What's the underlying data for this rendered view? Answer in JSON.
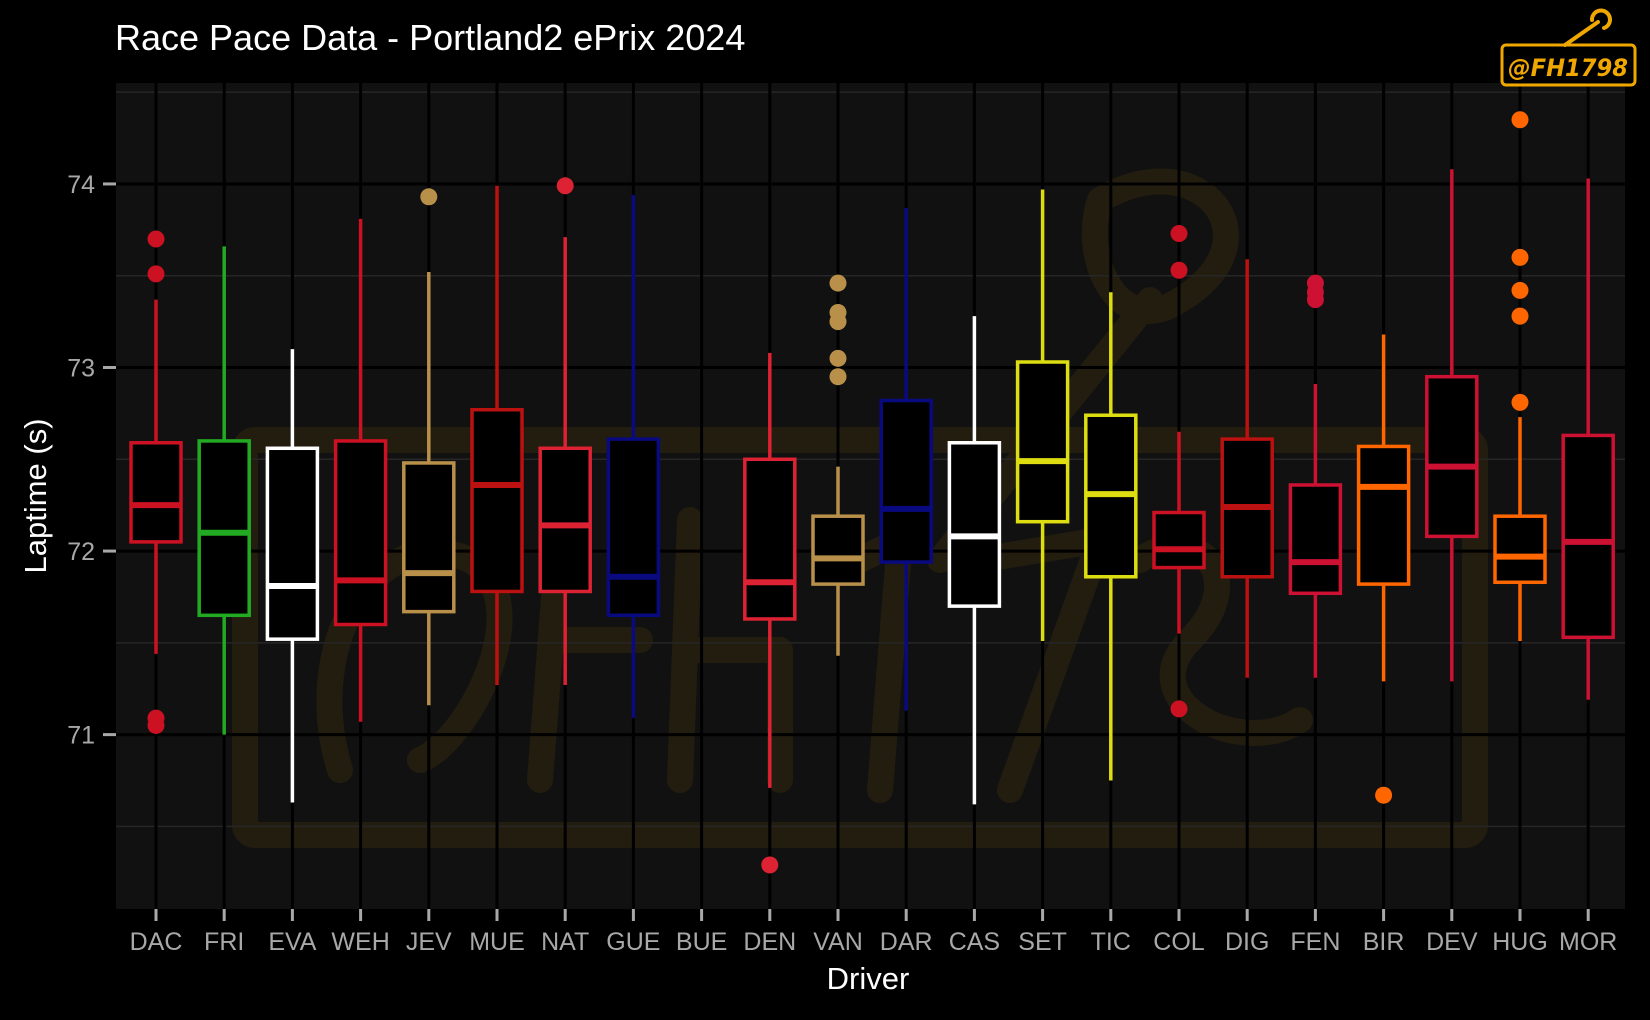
{
  "chart_data": {
    "type": "box",
    "title": "Race Pace Data - Portland2 ePrix 2024",
    "xlabel": "Driver",
    "ylabel": "Laptime (s)",
    "ylim": [
      70.05,
      74.55
    ],
    "yticks": [
      71,
      72,
      73,
      74
    ],
    "grid": true,
    "legend": "none",
    "logo_text": "@FH1798",
    "categories": [
      "DAC",
      "FRI",
      "EVA",
      "WEH",
      "JEV",
      "MUE",
      "NAT",
      "GUE",
      "BUE",
      "DEN",
      "VAN",
      "DAR",
      "CAS",
      "SET",
      "TIC",
      "COL",
      "DIG",
      "FEN",
      "BIR",
      "DEV",
      "HUG",
      "MOR"
    ],
    "series": [
      {
        "driver": "DAC",
        "color": "#cc1122",
        "q1": 72.05,
        "median": 72.25,
        "q3": 72.59,
        "lower": 71.44,
        "upper": 73.37,
        "outliers": [
          73.7,
          73.51,
          71.09,
          71.05
        ]
      },
      {
        "driver": "FRI",
        "color": "#22aa22",
        "q1": 71.65,
        "median": 72.1,
        "q3": 72.6,
        "lower": 71.0,
        "upper": 73.66,
        "outliers": []
      },
      {
        "driver": "EVA",
        "color": "#ffffff",
        "q1": 71.52,
        "median": 71.81,
        "q3": 72.56,
        "lower": 70.63,
        "upper": 73.1,
        "outliers": []
      },
      {
        "driver": "WEH",
        "color": "#cc1122",
        "q1": 71.6,
        "median": 71.84,
        "q3": 72.6,
        "lower": 71.07,
        "upper": 73.81,
        "outliers": []
      },
      {
        "driver": "JEV",
        "color": "#b8904a",
        "q1": 71.67,
        "median": 71.88,
        "q3": 72.48,
        "lower": 71.16,
        "upper": 73.52,
        "outliers": [
          73.93
        ]
      },
      {
        "driver": "MUE",
        "color": "#bb1111",
        "q1": 71.78,
        "median": 72.36,
        "q3": 72.77,
        "lower": 71.27,
        "upper": 73.99,
        "outliers": []
      },
      {
        "driver": "NAT",
        "color": "#dd2233",
        "q1": 71.78,
        "median": 72.14,
        "q3": 72.56,
        "lower": 71.27,
        "upper": 73.71,
        "outliers": [
          73.99
        ]
      },
      {
        "driver": "GUE",
        "color": "#0a0a80",
        "q1": 71.65,
        "median": 71.86,
        "q3": 72.61,
        "lower": 71.09,
        "upper": 73.94,
        "outliers": []
      },
      {
        "driver": "BUE",
        "color": "#111111",
        "q1": null,
        "median": null,
        "q3": null,
        "lower": null,
        "upper": null,
        "outliers": []
      },
      {
        "driver": "DEN",
        "color": "#dd2233",
        "q1": 71.63,
        "median": 71.83,
        "q3": 72.5,
        "lower": 70.71,
        "upper": 73.08,
        "outliers": [
          70.29
        ]
      },
      {
        "driver": "VAN",
        "color": "#b8904a",
        "q1": 71.82,
        "median": 71.96,
        "q3": 72.19,
        "lower": 71.43,
        "upper": 72.46,
        "outliers": [
          73.46,
          73.3,
          73.25,
          73.05,
          72.95
        ]
      },
      {
        "driver": "DAR",
        "color": "#0a0a80",
        "q1": 71.94,
        "median": 72.23,
        "q3": 72.82,
        "lower": 71.13,
        "upper": 73.87,
        "outliers": []
      },
      {
        "driver": "CAS",
        "color": "#ffffff",
        "q1": 71.7,
        "median": 72.08,
        "q3": 72.59,
        "lower": 70.62,
        "upper": 73.28,
        "outliers": []
      },
      {
        "driver": "SET",
        "color": "#dddd11",
        "q1": 72.16,
        "median": 72.49,
        "q3": 73.03,
        "lower": 71.51,
        "upper": 73.97,
        "outliers": []
      },
      {
        "driver": "TIC",
        "color": "#dddd11",
        "q1": 71.86,
        "median": 72.31,
        "q3": 72.74,
        "lower": 70.75,
        "upper": 73.41,
        "outliers": []
      },
      {
        "driver": "COL",
        "color": "#cc1122",
        "q1": 71.91,
        "median": 72.01,
        "q3": 72.21,
        "lower": 71.55,
        "upper": 72.65,
        "outliers": [
          73.73,
          73.53,
          71.14
        ]
      },
      {
        "driver": "DIG",
        "color": "#bb1111",
        "q1": 71.86,
        "median": 72.24,
        "q3": 72.61,
        "lower": 71.31,
        "upper": 73.59,
        "outliers": []
      },
      {
        "driver": "FEN",
        "color": "#cc1133",
        "q1": 71.77,
        "median": 71.94,
        "q3": 72.36,
        "lower": 71.31,
        "upper": 72.91,
        "outliers": [
          73.46,
          73.41,
          73.37
        ]
      },
      {
        "driver": "BIR",
        "color": "#ff6600",
        "q1": 71.82,
        "median": 72.35,
        "q3": 72.57,
        "lower": 71.29,
        "upper": 73.18,
        "outliers": [
          70.67
        ]
      },
      {
        "driver": "DEV",
        "color": "#cc1133",
        "q1": 72.08,
        "median": 72.46,
        "q3": 72.95,
        "lower": 71.29,
        "upper": 74.08,
        "outliers": []
      },
      {
        "driver": "HUG",
        "color": "#ff6600",
        "q1": 71.83,
        "median": 71.97,
        "q3": 72.19,
        "lower": 71.51,
        "upper": 72.73,
        "outliers": [
          74.35,
          73.6,
          73.42,
          73.28,
          72.81
        ]
      },
      {
        "driver": "MOR",
        "color": "#cc1133",
        "q1": 71.53,
        "median": 72.05,
        "q3": 72.63,
        "lower": 71.19,
        "upper": 74.03,
        "outliers": []
      }
    ]
  }
}
